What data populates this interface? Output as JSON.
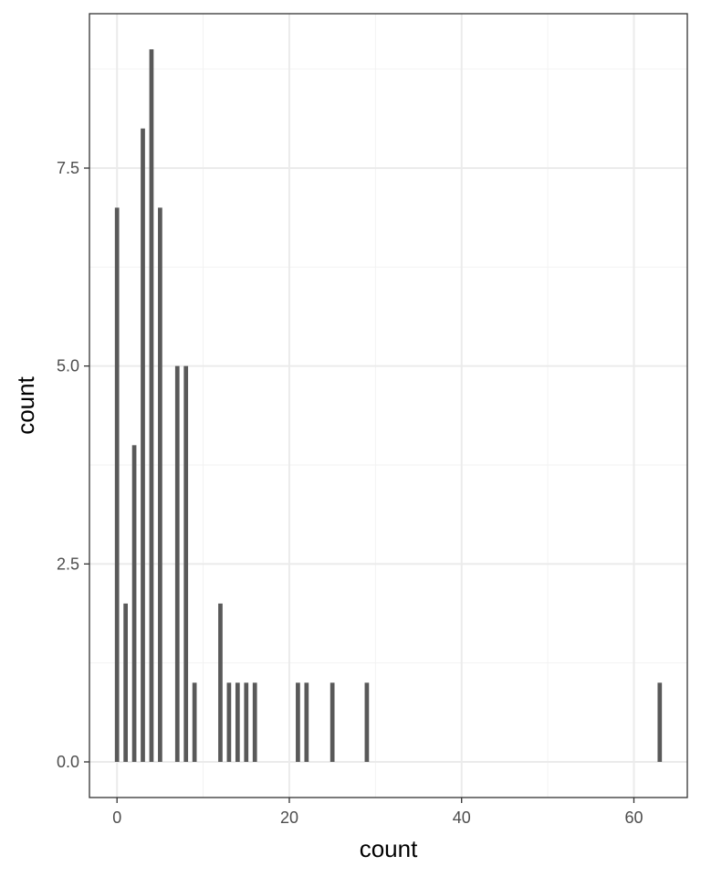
{
  "chart_data": {
    "type": "bar",
    "xlabel": "count",
    "ylabel": "count",
    "xlim": [
      -3.2,
      66.2
    ],
    "ylim": [
      -0.45,
      9.45
    ],
    "x_ticks": [
      0,
      20,
      40,
      60
    ],
    "x_tick_labels": [
      "0",
      "20",
      "40",
      "60"
    ],
    "y_ticks": [
      0,
      2.5,
      5,
      7.5
    ],
    "y_tick_labels": [
      "0.0",
      "2.5",
      "5.0",
      "7.5"
    ],
    "grid": true,
    "theme": "bw",
    "bar_color": "#595959",
    "points": [
      {
        "x": 0,
        "y": 7
      },
      {
        "x": 1,
        "y": 2
      },
      {
        "x": 2,
        "y": 4
      },
      {
        "x": 3,
        "y": 8
      },
      {
        "x": 4,
        "y": 9
      },
      {
        "x": 5,
        "y": 7
      },
      {
        "x": 7,
        "y": 5
      },
      {
        "x": 8,
        "y": 5
      },
      {
        "x": 9,
        "y": 1
      },
      {
        "x": 12,
        "y": 2
      },
      {
        "x": 13,
        "y": 1
      },
      {
        "x": 14,
        "y": 1
      },
      {
        "x": 15,
        "y": 1
      },
      {
        "x": 16,
        "y": 1
      },
      {
        "x": 21,
        "y": 1
      },
      {
        "x": 22,
        "y": 1
      },
      {
        "x": 25,
        "y": 1
      },
      {
        "x": 29,
        "y": 1
      },
      {
        "x": 63,
        "y": 1
      }
    ]
  }
}
